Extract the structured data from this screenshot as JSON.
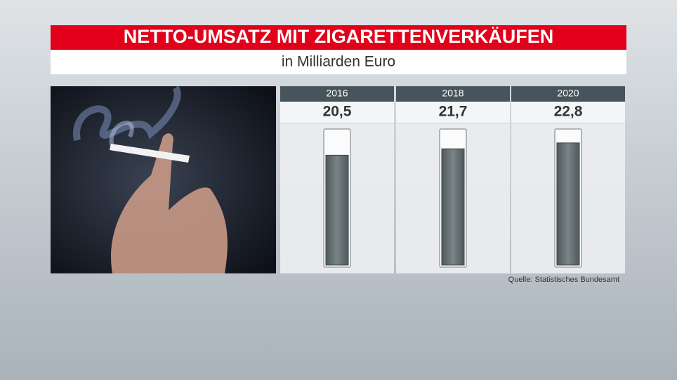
{
  "chart_data": {
    "type": "bar",
    "title": "NETTO-UMSATZ MIT ZIGARETTENVERKÄUFEN",
    "subtitle": "in Milliarden Euro",
    "categories": [
      "2016",
      "2018",
      "2020"
    ],
    "values": [
      20.5,
      21.7,
      22.8
    ],
    "value_labels": [
      "20,5",
      "21,7",
      "22,8"
    ],
    "color": "#5f686b",
    "ylim": [
      0,
      25
    ],
    "source": "Quelle: Statistisches Bundesamt"
  }
}
